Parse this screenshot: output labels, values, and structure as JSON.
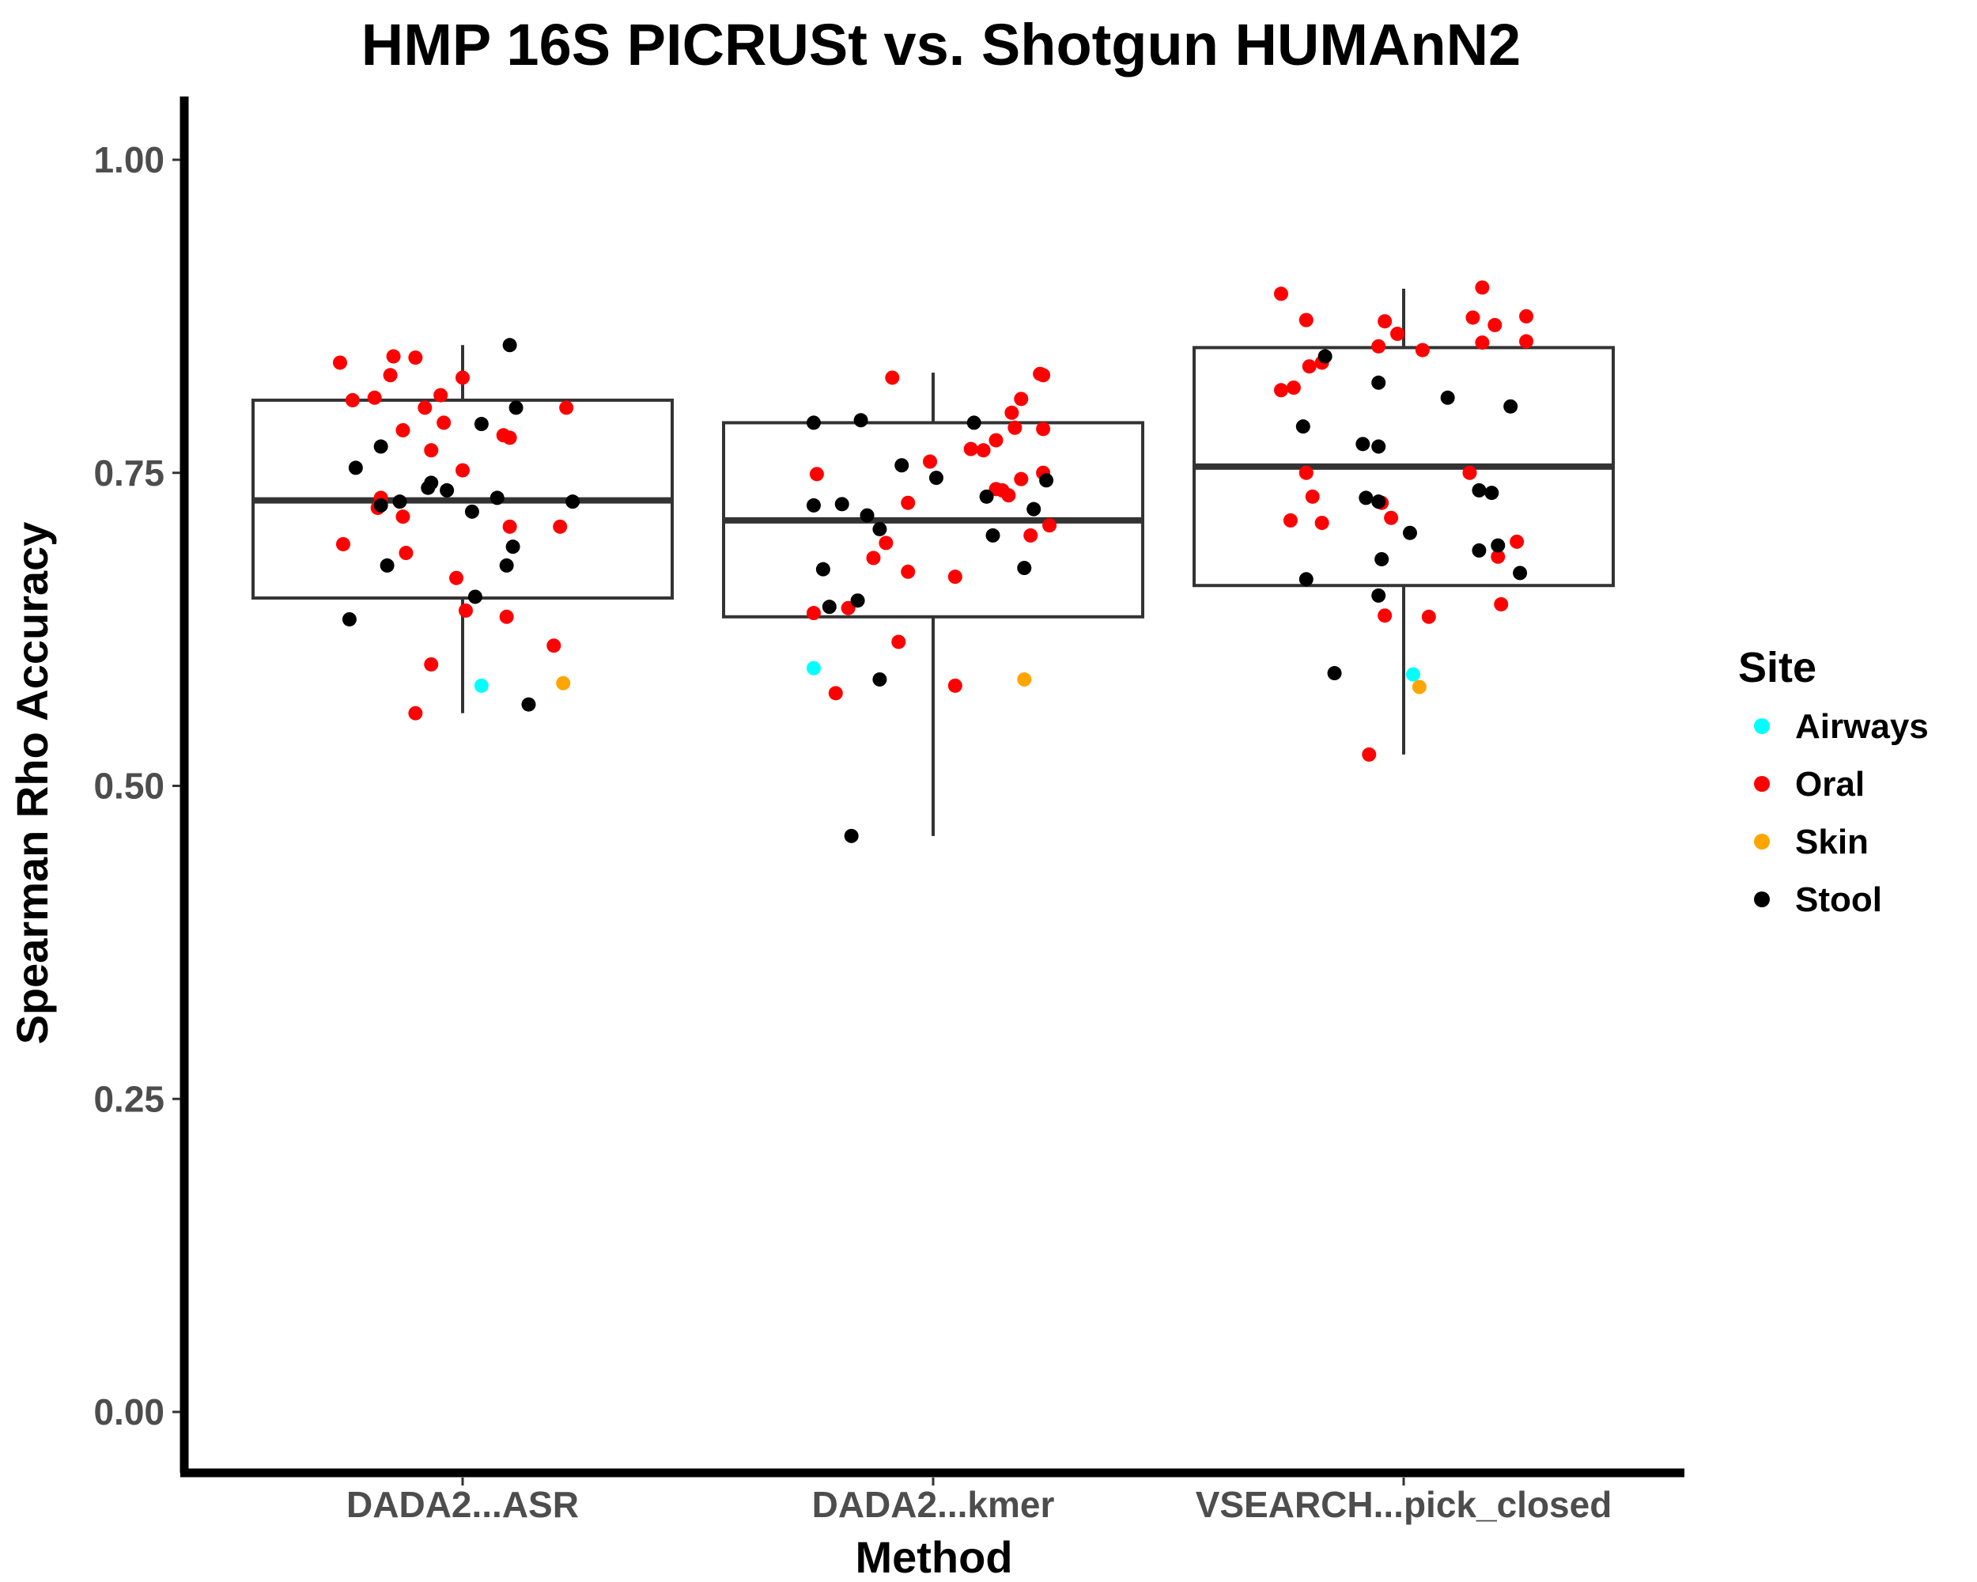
{
  "chart_data": {
    "type": "boxplot",
    "title": "HMP 16S PICRUSt vs. Shotgun HUMAnN2",
    "xlabel": "Method",
    "ylabel": "Spearman Rho Accuracy",
    "categories": [
      "DADA2...ASR",
      "DADA2...kmer",
      "VSEARCH...pick_closed"
    ],
    "ylim": [
      -0.05,
      1.05
    ],
    "yticks": [
      0.0,
      0.25,
      0.5,
      0.75,
      1.0
    ],
    "ytick_labels": [
      "0.00",
      "0.25",
      "0.50",
      "0.75",
      "1.00"
    ],
    "grid": false,
    "legend": {
      "title": "Site",
      "position": "right",
      "entries": [
        {
          "label": "Airways",
          "color": "#00FFFF"
        },
        {
          "label": "Oral",
          "color": "#FF0000"
        },
        {
          "label": "Skin",
          "color": "#FFA500"
        },
        {
          "label": "Stool",
          "color": "#000000"
        }
      ]
    },
    "boxes": [
      {
        "category": "DADA2...ASR",
        "min": 0.558,
        "q1": 0.65,
        "median": 0.728,
        "q3": 0.808,
        "max": 0.852
      },
      {
        "category": "DADA2...kmer",
        "min": 0.46,
        "q1": 0.635,
        "median": 0.712,
        "q3": 0.79,
        "max": 0.83
      },
      {
        "category": "VSEARCH...pick_closed",
        "min": 0.525,
        "q1": 0.66,
        "median": 0.755,
        "q3": 0.85,
        "max": 0.897
      }
    ],
    "points": [
      {
        "group": 0,
        "jitter": -0.39,
        "y": 0.838,
        "site": "Oral"
      },
      {
        "group": 0,
        "jitter": -0.35,
        "y": 0.808,
        "site": "Oral"
      },
      {
        "group": 0,
        "jitter": -0.28,
        "y": 0.81,
        "site": "Oral"
      },
      {
        "group": 0,
        "jitter": -0.23,
        "y": 0.828,
        "site": "Oral"
      },
      {
        "group": 0,
        "jitter": -0.22,
        "y": 0.843,
        "site": "Oral"
      },
      {
        "group": 0,
        "jitter": -0.15,
        "y": 0.842,
        "site": "Oral"
      },
      {
        "group": 0,
        "jitter": -0.12,
        "y": 0.802,
        "site": "Oral"
      },
      {
        "group": 0,
        "jitter": -0.07,
        "y": 0.812,
        "site": "Oral"
      },
      {
        "group": 0,
        "jitter": 0.0,
        "y": 0.826,
        "site": "Oral"
      },
      {
        "group": 0,
        "jitter": 0.33,
        "y": 0.802,
        "site": "Oral"
      },
      {
        "group": 0,
        "jitter": -0.19,
        "y": 0.784,
        "site": "Oral"
      },
      {
        "group": 0,
        "jitter": -0.1,
        "y": 0.768,
        "site": "Oral"
      },
      {
        "group": 0,
        "jitter": -0.06,
        "y": 0.79,
        "site": "Oral"
      },
      {
        "group": 0,
        "jitter": 0.13,
        "y": 0.78,
        "site": "Oral"
      },
      {
        "group": 0,
        "jitter": 0.15,
        "y": 0.778,
        "site": "Oral"
      },
      {
        "group": 0,
        "jitter": 0.0,
        "y": 0.752,
        "site": "Oral"
      },
      {
        "group": 0,
        "jitter": -0.26,
        "y": 0.73,
        "site": "Oral"
      },
      {
        "group": 0,
        "jitter": -0.27,
        "y": 0.722,
        "site": "Oral"
      },
      {
        "group": 0,
        "jitter": -0.19,
        "y": 0.715,
        "site": "Oral"
      },
      {
        "group": 0,
        "jitter": -0.38,
        "y": 0.693,
        "site": "Oral"
      },
      {
        "group": 0,
        "jitter": -0.18,
        "y": 0.686,
        "site": "Oral"
      },
      {
        "group": 0,
        "jitter": 0.15,
        "y": 0.707,
        "site": "Oral"
      },
      {
        "group": 0,
        "jitter": 0.31,
        "y": 0.707,
        "site": "Oral"
      },
      {
        "group": 0,
        "jitter": -0.02,
        "y": 0.666,
        "site": "Oral"
      },
      {
        "group": 0,
        "jitter": 0.01,
        "y": 0.64,
        "site": "Oral"
      },
      {
        "group": 0,
        "jitter": 0.14,
        "y": 0.635,
        "site": "Oral"
      },
      {
        "group": 0,
        "jitter": 0.29,
        "y": 0.612,
        "site": "Oral"
      },
      {
        "group": 0,
        "jitter": -0.1,
        "y": 0.597,
        "site": "Oral"
      },
      {
        "group": 0,
        "jitter": -0.15,
        "y": 0.558,
        "site": "Oral"
      },
      {
        "group": 0,
        "jitter": -0.34,
        "y": 0.754,
        "site": "Stool"
      },
      {
        "group": 0,
        "jitter": -0.26,
        "y": 0.771,
        "site": "Stool"
      },
      {
        "group": 0,
        "jitter": -0.26,
        "y": 0.724,
        "site": "Stool"
      },
      {
        "group": 0,
        "jitter": -0.2,
        "y": 0.727,
        "site": "Stool"
      },
      {
        "group": 0,
        "jitter": -0.11,
        "y": 0.738,
        "site": "Stool"
      },
      {
        "group": 0,
        "jitter": -0.1,
        "y": 0.742,
        "site": "Stool"
      },
      {
        "group": 0,
        "jitter": -0.05,
        "y": 0.736,
        "site": "Stool"
      },
      {
        "group": 0,
        "jitter": 0.03,
        "y": 0.719,
        "site": "Stool"
      },
      {
        "group": 0,
        "jitter": 0.06,
        "y": 0.789,
        "site": "Stool"
      },
      {
        "group": 0,
        "jitter": 0.11,
        "y": 0.73,
        "site": "Stool"
      },
      {
        "group": 0,
        "jitter": 0.15,
        "y": 0.852,
        "site": "Stool"
      },
      {
        "group": 0,
        "jitter": 0.17,
        "y": 0.802,
        "site": "Stool"
      },
      {
        "group": 0,
        "jitter": 0.35,
        "y": 0.727,
        "site": "Stool"
      },
      {
        "group": 0,
        "jitter": -0.24,
        "y": 0.676,
        "site": "Stool"
      },
      {
        "group": 0,
        "jitter": 0.14,
        "y": 0.676,
        "site": "Stool"
      },
      {
        "group": 0,
        "jitter": 0.16,
        "y": 0.691,
        "site": "Stool"
      },
      {
        "group": 0,
        "jitter": 0.04,
        "y": 0.651,
        "site": "Stool"
      },
      {
        "group": 0,
        "jitter": -0.36,
        "y": 0.633,
        "site": "Stool"
      },
      {
        "group": 0,
        "jitter": 0.21,
        "y": 0.565,
        "site": "Stool"
      },
      {
        "group": 0,
        "jitter": 0.06,
        "y": 0.58,
        "site": "Airways"
      },
      {
        "group": 0,
        "jitter": 0.32,
        "y": 0.582,
        "site": "Skin"
      },
      {
        "group": 1,
        "jitter": -0.37,
        "y": 0.749,
        "site": "Oral"
      },
      {
        "group": 1,
        "jitter": -0.38,
        "y": 0.638,
        "site": "Oral"
      },
      {
        "group": 1,
        "jitter": -0.31,
        "y": 0.574,
        "site": "Oral"
      },
      {
        "group": 1,
        "jitter": -0.27,
        "y": 0.642,
        "site": "Oral"
      },
      {
        "group": 1,
        "jitter": -0.19,
        "y": 0.682,
        "site": "Oral"
      },
      {
        "group": 1,
        "jitter": -0.15,
        "y": 0.694,
        "site": "Oral"
      },
      {
        "group": 1,
        "jitter": -0.13,
        "y": 0.826,
        "site": "Oral"
      },
      {
        "group": 1,
        "jitter": -0.11,
        "y": 0.615,
        "site": "Oral"
      },
      {
        "group": 1,
        "jitter": -0.08,
        "y": 0.726,
        "site": "Oral"
      },
      {
        "group": 1,
        "jitter": -0.08,
        "y": 0.671,
        "site": "Oral"
      },
      {
        "group": 1,
        "jitter": -0.01,
        "y": 0.759,
        "site": "Oral"
      },
      {
        "group": 1,
        "jitter": 0.07,
        "y": 0.667,
        "site": "Oral"
      },
      {
        "group": 1,
        "jitter": 0.07,
        "y": 0.58,
        "site": "Oral"
      },
      {
        "group": 1,
        "jitter": 0.12,
        "y": 0.769,
        "site": "Oral"
      },
      {
        "group": 1,
        "jitter": 0.16,
        "y": 0.768,
        "site": "Oral"
      },
      {
        "group": 1,
        "jitter": 0.2,
        "y": 0.776,
        "site": "Oral"
      },
      {
        "group": 1,
        "jitter": 0.2,
        "y": 0.737,
        "site": "Oral"
      },
      {
        "group": 1,
        "jitter": 0.22,
        "y": 0.736,
        "site": "Oral"
      },
      {
        "group": 1,
        "jitter": 0.24,
        "y": 0.732,
        "site": "Oral"
      },
      {
        "group": 1,
        "jitter": 0.25,
        "y": 0.798,
        "site": "Oral"
      },
      {
        "group": 1,
        "jitter": 0.26,
        "y": 0.786,
        "site": "Oral"
      },
      {
        "group": 1,
        "jitter": 0.28,
        "y": 0.809,
        "site": "Oral"
      },
      {
        "group": 1,
        "jitter": 0.28,
        "y": 0.745,
        "site": "Oral"
      },
      {
        "group": 1,
        "jitter": 0.31,
        "y": 0.7,
        "site": "Oral"
      },
      {
        "group": 1,
        "jitter": 0.34,
        "y": 0.829,
        "site": "Oral"
      },
      {
        "group": 1,
        "jitter": 0.35,
        "y": 0.828,
        "site": "Oral"
      },
      {
        "group": 1,
        "jitter": 0.35,
        "y": 0.785,
        "site": "Oral"
      },
      {
        "group": 1,
        "jitter": 0.35,
        "y": 0.75,
        "site": "Oral"
      },
      {
        "group": 1,
        "jitter": 0.37,
        "y": 0.708,
        "site": "Oral"
      },
      {
        "group": 1,
        "jitter": -0.38,
        "y": 0.79,
        "site": "Stool"
      },
      {
        "group": 1,
        "jitter": -0.38,
        "y": 0.724,
        "site": "Stool"
      },
      {
        "group": 1,
        "jitter": -0.35,
        "y": 0.673,
        "site": "Stool"
      },
      {
        "group": 1,
        "jitter": -0.33,
        "y": 0.643,
        "site": "Stool"
      },
      {
        "group": 1,
        "jitter": -0.29,
        "y": 0.725,
        "site": "Stool"
      },
      {
        "group": 1,
        "jitter": -0.24,
        "y": 0.648,
        "site": "Stool"
      },
      {
        "group": 1,
        "jitter": -0.23,
        "y": 0.792,
        "site": "Stool"
      },
      {
        "group": 1,
        "jitter": -0.21,
        "y": 0.716,
        "site": "Stool"
      },
      {
        "group": 1,
        "jitter": -0.17,
        "y": 0.705,
        "site": "Stool"
      },
      {
        "group": 1,
        "jitter": -0.17,
        "y": 0.585,
        "site": "Stool"
      },
      {
        "group": 1,
        "jitter": -0.1,
        "y": 0.756,
        "site": "Stool"
      },
      {
        "group": 1,
        "jitter": -0.26,
        "y": 0.46,
        "site": "Stool"
      },
      {
        "group": 1,
        "jitter": 0.01,
        "y": 0.746,
        "site": "Stool"
      },
      {
        "group": 1,
        "jitter": 0.13,
        "y": 0.79,
        "site": "Stool"
      },
      {
        "group": 1,
        "jitter": 0.17,
        "y": 0.731,
        "site": "Stool"
      },
      {
        "group": 1,
        "jitter": 0.19,
        "y": 0.7,
        "site": "Stool"
      },
      {
        "group": 1,
        "jitter": 0.29,
        "y": 0.674,
        "site": "Stool"
      },
      {
        "group": 1,
        "jitter": 0.32,
        "y": 0.721,
        "site": "Stool"
      },
      {
        "group": 1,
        "jitter": 0.36,
        "y": 0.744,
        "site": "Stool"
      },
      {
        "group": 1,
        "jitter": -0.38,
        "y": 0.594,
        "site": "Airways"
      },
      {
        "group": 1,
        "jitter": 0.29,
        "y": 0.585,
        "site": "Skin"
      },
      {
        "group": 2,
        "jitter": -0.39,
        "y": 0.893,
        "site": "Oral"
      },
      {
        "group": 2,
        "jitter": -0.39,
        "y": 0.816,
        "site": "Oral"
      },
      {
        "group": 2,
        "jitter": -0.35,
        "y": 0.818,
        "site": "Oral"
      },
      {
        "group": 2,
        "jitter": -0.31,
        "y": 0.872,
        "site": "Oral"
      },
      {
        "group": 2,
        "jitter": -0.3,
        "y": 0.835,
        "site": "Oral"
      },
      {
        "group": 2,
        "jitter": -0.26,
        "y": 0.838,
        "site": "Oral"
      },
      {
        "group": 2,
        "jitter": -0.31,
        "y": 0.75,
        "site": "Oral"
      },
      {
        "group": 2,
        "jitter": -0.36,
        "y": 0.712,
        "site": "Oral"
      },
      {
        "group": 2,
        "jitter": -0.29,
        "y": 0.731,
        "site": "Oral"
      },
      {
        "group": 2,
        "jitter": -0.26,
        "y": 0.71,
        "site": "Oral"
      },
      {
        "group": 2,
        "jitter": -0.08,
        "y": 0.851,
        "site": "Oral"
      },
      {
        "group": 2,
        "jitter": -0.06,
        "y": 0.871,
        "site": "Oral"
      },
      {
        "group": 2,
        "jitter": -0.02,
        "y": 0.861,
        "site": "Oral"
      },
      {
        "group": 2,
        "jitter": 0.06,
        "y": 0.848,
        "site": "Oral"
      },
      {
        "group": 2,
        "jitter": -0.07,
        "y": 0.726,
        "site": "Oral"
      },
      {
        "group": 2,
        "jitter": -0.04,
        "y": 0.714,
        "site": "Oral"
      },
      {
        "group": 2,
        "jitter": -0.06,
        "y": 0.636,
        "site": "Oral"
      },
      {
        "group": 2,
        "jitter": 0.08,
        "y": 0.635,
        "site": "Oral"
      },
      {
        "group": 2,
        "jitter": -0.11,
        "y": 0.525,
        "site": "Oral"
      },
      {
        "group": 2,
        "jitter": 0.21,
        "y": 0.75,
        "site": "Oral"
      },
      {
        "group": 2,
        "jitter": 0.22,
        "y": 0.874,
        "site": "Oral"
      },
      {
        "group": 2,
        "jitter": 0.25,
        "y": 0.854,
        "site": "Oral"
      },
      {
        "group": 2,
        "jitter": 0.25,
        "y": 0.898,
        "site": "Oral"
      },
      {
        "group": 2,
        "jitter": 0.29,
        "y": 0.868,
        "site": "Oral"
      },
      {
        "group": 2,
        "jitter": 0.3,
        "y": 0.683,
        "site": "Oral"
      },
      {
        "group": 2,
        "jitter": 0.31,
        "y": 0.645,
        "site": "Oral"
      },
      {
        "group": 2,
        "jitter": 0.36,
        "y": 0.695,
        "site": "Oral"
      },
      {
        "group": 2,
        "jitter": 0.39,
        "y": 0.875,
        "site": "Oral"
      },
      {
        "group": 2,
        "jitter": 0.39,
        "y": 0.855,
        "site": "Oral"
      },
      {
        "group": 2,
        "jitter": -0.32,
        "y": 0.787,
        "site": "Stool"
      },
      {
        "group": 2,
        "jitter": -0.31,
        "y": 0.665,
        "site": "Stool"
      },
      {
        "group": 2,
        "jitter": -0.25,
        "y": 0.843,
        "site": "Stool"
      },
      {
        "group": 2,
        "jitter": -0.22,
        "y": 0.59,
        "site": "Stool"
      },
      {
        "group": 2,
        "jitter": -0.13,
        "y": 0.773,
        "site": "Stool"
      },
      {
        "group": 2,
        "jitter": -0.12,
        "y": 0.73,
        "site": "Stool"
      },
      {
        "group": 2,
        "jitter": -0.08,
        "y": 0.822,
        "site": "Stool"
      },
      {
        "group": 2,
        "jitter": -0.08,
        "y": 0.771,
        "site": "Stool"
      },
      {
        "group": 2,
        "jitter": -0.08,
        "y": 0.727,
        "site": "Stool"
      },
      {
        "group": 2,
        "jitter": -0.07,
        "y": 0.681,
        "site": "Stool"
      },
      {
        "group": 2,
        "jitter": -0.08,
        "y": 0.652,
        "site": "Stool"
      },
      {
        "group": 2,
        "jitter": 0.02,
        "y": 0.702,
        "site": "Stool"
      },
      {
        "group": 2,
        "jitter": 0.14,
        "y": 0.81,
        "site": "Stool"
      },
      {
        "group": 2,
        "jitter": 0.24,
        "y": 0.736,
        "site": "Stool"
      },
      {
        "group": 2,
        "jitter": 0.28,
        "y": 0.734,
        "site": "Stool"
      },
      {
        "group": 2,
        "jitter": 0.24,
        "y": 0.688,
        "site": "Stool"
      },
      {
        "group": 2,
        "jitter": 0.3,
        "y": 0.692,
        "site": "Stool"
      },
      {
        "group": 2,
        "jitter": 0.34,
        "y": 0.803,
        "site": "Stool"
      },
      {
        "group": 2,
        "jitter": 0.37,
        "y": 0.67,
        "site": "Stool"
      },
      {
        "group": 2,
        "jitter": 0.03,
        "y": 0.589,
        "site": "Airways"
      },
      {
        "group": 2,
        "jitter": 0.05,
        "y": 0.579,
        "site": "Skin"
      }
    ]
  }
}
